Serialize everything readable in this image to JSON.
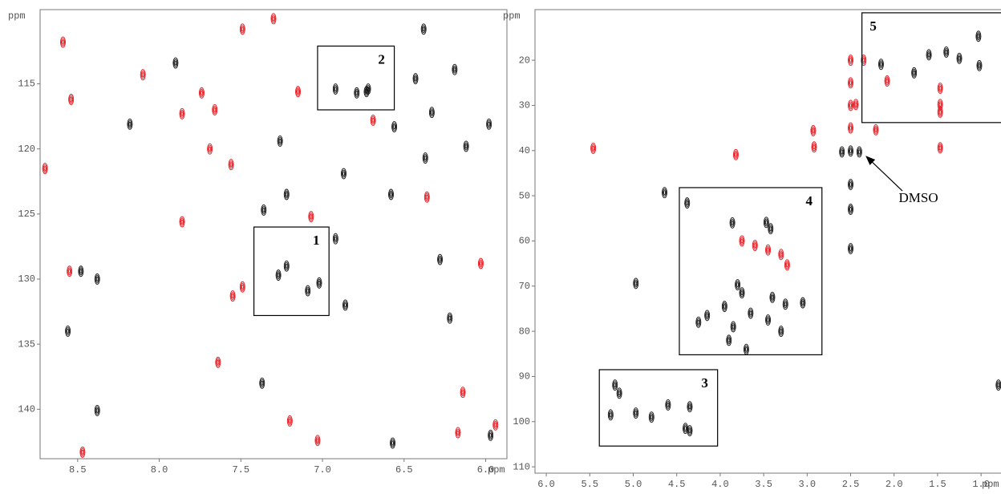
{
  "chart_data": [
    {
      "type": "scatter",
      "x_label": "ppm",
      "y_label": "ppm",
      "xlim": [
        8.73,
        5.87
      ],
      "ylim": [
        109.3,
        143.8
      ],
      "xticks": [
        8.5,
        {
          "value": 8,
          "label": "8.0"
        },
        7.5,
        {
          "value": 7,
          "label": "7.0"
        },
        6.5,
        {
          "value": 6,
          "label": "6.0"
        }
      ],
      "yticks": [
        115,
        120,
        125,
        130,
        135,
        140
      ],
      "series": [
        {
          "color": "#e8141b",
          "x": [
            7.3,
            7.49,
            8.59,
            8.1,
            7.74,
            7.66,
            8.54,
            7.86,
            7.69,
            8.7,
            7.56,
            7.15,
            7.07,
            7.86,
            8.55,
            7.49,
            7.55,
            6.03,
            6.36,
            6.69,
            7.64,
            7.2,
            6.14,
            6.17,
            7.03,
            8.47,
            5.94
          ],
          "y": [
            110.0,
            110.8,
            111.8,
            114.3,
            115.7,
            117.0,
            116.2,
            117.3,
            120.0,
            121.5,
            121.2,
            115.6,
            125.2,
            125.6,
            129.4,
            130.6,
            131.3,
            128.8,
            123.7,
            117.8,
            136.4,
            140.9,
            138.7,
            141.8,
            142.4,
            143.3,
            141.2
          ]
        },
        {
          "color": "#111111",
          "x": [
            6.38,
            7.9,
            6.19,
            6.43,
            6.92,
            6.79,
            6.73,
            6.72,
            6.33,
            8.18,
            6.56,
            5.98,
            7.26,
            6.12,
            6.37,
            6.87,
            7.22,
            6.58,
            7.36,
            6.92,
            6.28,
            8.38,
            8.48,
            6.86,
            7.27,
            7.22,
            7.09,
            7.02,
            6.22,
            8.56,
            7.37,
            8.38,
            5.97,
            6.57
          ],
          "y": [
            110.8,
            113.4,
            113.9,
            114.6,
            115.4,
            115.7,
            115.6,
            115.4,
            117.2,
            118.1,
            118.3,
            118.1,
            119.4,
            119.8,
            120.7,
            121.9,
            123.5,
            123.5,
            124.7,
            126.9,
            128.5,
            130.0,
            129.4,
            132.0,
            129.7,
            129.0,
            130.9,
            130.3,
            133.0,
            134.0,
            138.0,
            140.1,
            142.0,
            142.6
          ]
        }
      ],
      "annotations": [
        {
          "text": "1",
          "xlim": [
            7.42,
            6.96
          ],
          "ylim": [
            126.0,
            132.8
          ]
        },
        {
          "text": "2",
          "xlim": [
            7.03,
            6.56
          ],
          "ylim": [
            112.1,
            117.0
          ]
        }
      ]
    },
    {
      "type": "scatter",
      "x_label": "ppm",
      "y_label": "ppm",
      "xlim": [
        6.13,
        0.66
      ],
      "ylim": [
        8.8,
        111.4
      ],
      "xticks": [
        {
          "value": 6,
          "label": "6.0"
        },
        5.5,
        {
          "value": 5,
          "label": "5.0"
        },
        4.5,
        {
          "value": 4,
          "label": "4.0"
        },
        3.5,
        {
          "value": 3,
          "label": "3.0"
        },
        2.5,
        {
          "value": 2,
          "label": "2.0"
        },
        1.5,
        {
          "value": 1,
          "label": "1.0"
        }
      ],
      "yticks": [
        20,
        30,
        40,
        50,
        60,
        70,
        80,
        90,
        100,
        110
      ],
      "series": [
        {
          "color": "#e8141b",
          "x": [
            2.5,
            2.5,
            2.5,
            2.5,
            5.46,
            3.82,
            2.93,
            2.44,
            1.47,
            2.21,
            3.75,
            3.6,
            3.45,
            3.3,
            3.23,
            1.47,
            1.47,
            1.47,
            2.08,
            2.92,
            2.35
          ],
          "y": [
            20,
            25,
            30,
            35,
            39.5,
            40.9,
            35.6,
            29.8,
            39.4,
            35.4,
            60.0,
            61.0,
            62.0,
            63.0,
            65.3,
            26.2,
            29.8,
            31.5,
            24.6,
            39.2,
            20.0
          ]
        },
        {
          "color": "#111111",
          "x": [
            2.5,
            2.6,
            2.4,
            2.5,
            2.5,
            2.5,
            4.64,
            4.38,
            3.86,
            3.42,
            3.47,
            3.8,
            3.75,
            3.4,
            3.95,
            3.65,
            3.25,
            3.05,
            4.15,
            3.85,
            3.45,
            3.9,
            4.25,
            3.7,
            3.3,
            5.21,
            5.16,
            4.97,
            4.79,
            4.6,
            4.35,
            4.35,
            5.26,
            4.4,
            2.15,
            1.77,
            1.6,
            1.4,
            1.25,
            1.02,
            1.03,
            4.97,
            0.8
          ],
          "y": [
            40.1,
            40.3,
            40.3,
            47.5,
            53.0,
            61.7,
            49.3,
            51.6,
            56.0,
            57.3,
            55.9,
            69.7,
            71.5,
            72.5,
            74.5,
            76.0,
            74.0,
            73.7,
            76.5,
            79.0,
            77.5,
            82.0,
            78.0,
            84.0,
            80.0,
            91.9,
            93.7,
            98.1,
            99.0,
            96.3,
            96.7,
            102.0,
            98.5,
            101.5,
            20.9,
            22.8,
            18.8,
            18.2,
            19.6,
            21.2,
            14.7,
            69.4,
            91.9
          ]
        }
      ],
      "annotations": [
        {
          "text": "3",
          "xlim": [
            5.39,
            4.03
          ],
          "ylim": [
            88.5,
            105.4
          ]
        },
        {
          "text": "4",
          "xlim": [
            4.47,
            2.83
          ],
          "ylim": [
            48.2,
            85.2
          ]
        },
        {
          "text": "5",
          "xlim": [
            2.37,
            0.76
          ],
          "ylim": [
            9.5,
            33.8
          ]
        },
        {
          "text": "DMSO",
          "x": 1.72,
          "y": 50.7,
          "arrow_to": [
            2.32,
            41.3
          ]
        }
      ]
    }
  ]
}
